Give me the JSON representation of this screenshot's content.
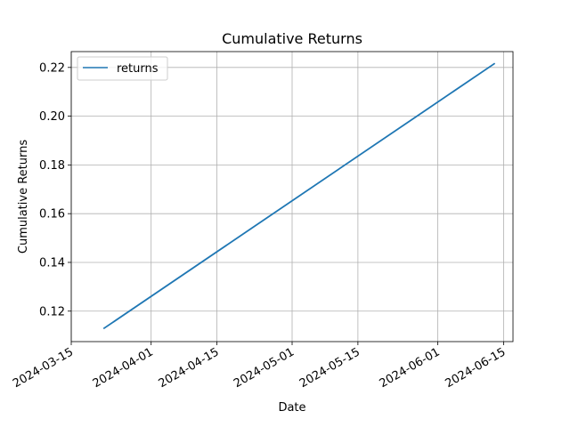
{
  "chart_data": {
    "type": "line",
    "title": "Cumulative Returns",
    "xlabel": "Date",
    "ylabel": "Cumulative Returns",
    "x_type": "date",
    "xlim": [
      "2024-03-15",
      "2024-06-17"
    ],
    "ylim": [
      0.1075,
      0.2265
    ],
    "x_ticks": [
      "2024-03-15",
      "2024-04-01",
      "2024-04-15",
      "2024-05-01",
      "2024-05-15",
      "2024-06-01",
      "2024-06-15"
    ],
    "y_ticks": [
      0.12,
      0.14,
      0.16,
      0.18,
      0.2,
      0.22
    ],
    "y_tick_labels": [
      "0.12",
      "0.14",
      "0.16",
      "0.18",
      "0.20",
      "0.22"
    ],
    "grid": true,
    "legend_position": "top-left",
    "series": [
      {
        "name": "returns",
        "color": "#1f77b4",
        "x": [
          "2024-03-22",
          "2024-06-13"
        ],
        "values": [
          0.113,
          0.2215
        ]
      }
    ]
  }
}
